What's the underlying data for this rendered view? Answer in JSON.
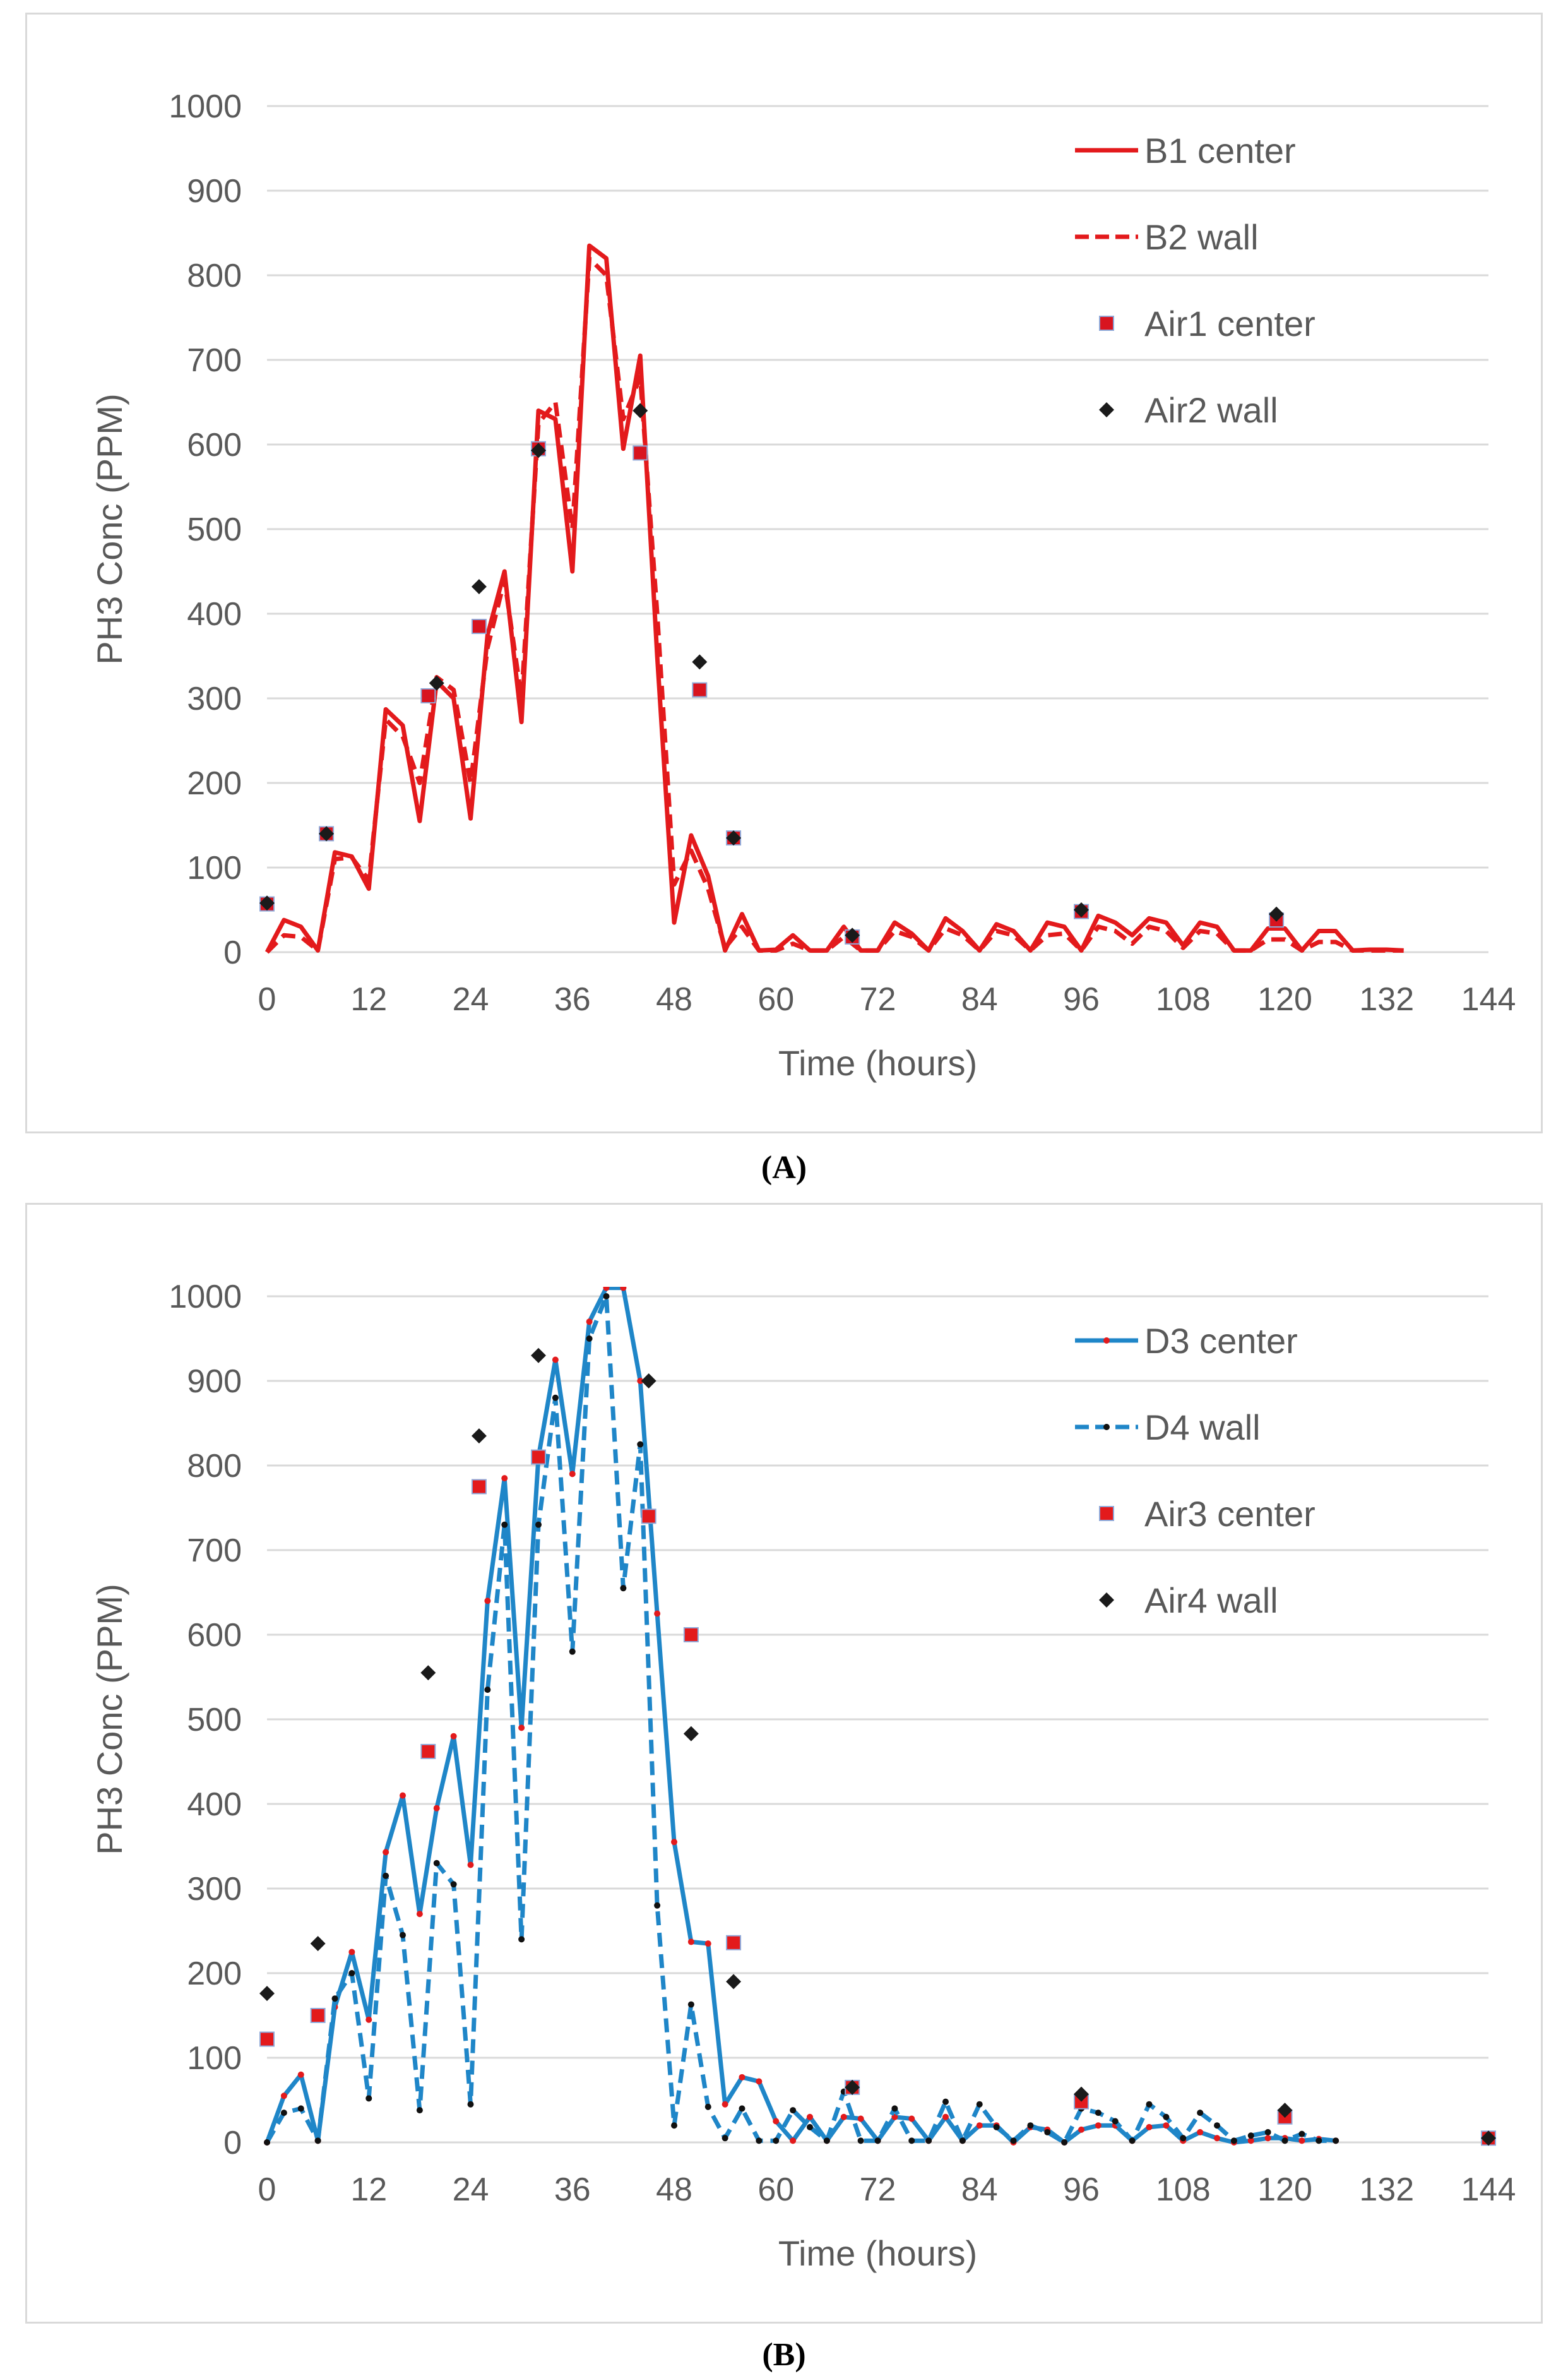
{
  "charts": [
    {
      "caption": "(A)",
      "chart_data": {
        "type": "line",
        "title": "",
        "xlabel": "Time (hours)",
        "ylabel": "PH3 Conc  (PPM)",
        "xlim": [
          0,
          144
        ],
        "ylim": [
          0,
          1000
        ],
        "xticks": [
          "0",
          "12",
          "24",
          "36",
          "48",
          "60",
          "72",
          "84",
          "96",
          "108",
          "120",
          "132",
          "144"
        ],
        "yticks": [
          "0",
          "100",
          "200",
          "300",
          "400",
          "500",
          "600",
          "700",
          "800",
          "900",
          "1000"
        ],
        "grid": "horizontal",
        "legend_position": "top-right",
        "series": [
          {
            "name": "B1 center",
            "kind": "line",
            "style": "solid",
            "color": "#e31a1c",
            "x": [
              0,
              2,
              4,
              6,
              8,
              10,
              12,
              14,
              16,
              18,
              20,
              22,
              24,
              26,
              28,
              30,
              32,
              34,
              36,
              38,
              40,
              42,
              44,
              46,
              48,
              50,
              52,
              54,
              56,
              58,
              60,
              62,
              64,
              66,
              68,
              70,
              72,
              74,
              76,
              78,
              80,
              82,
              84,
              86,
              88,
              90,
              92,
              94,
              96,
              98,
              100,
              102,
              104,
              106,
              108,
              110,
              112,
              114,
              116,
              118,
              120,
              122,
              124,
              126,
              128,
              130,
              132,
              134
            ],
            "y": [
              0,
              38,
              30,
              2,
              118,
              113,
              75,
              287,
              268,
              155,
              320,
              300,
              158,
              375,
              450,
              272,
              640,
              630,
              450,
              835,
              820,
              595,
              705,
              350,
              35,
              138,
              90,
              2,
              45,
              2,
              3,
              20,
              2,
              2,
              30,
              2,
              2,
              35,
              22,
              2,
              40,
              25,
              2,
              33,
              25,
              2,
              35,
              30,
              2,
              43,
              35,
              20,
              40,
              35,
              8,
              35,
              30,
              2,
              2,
              28,
              28,
              2,
              25,
              25,
              2,
              3,
              3,
              2
            ]
          },
          {
            "name": "B2 wall",
            "kind": "line",
            "style": "dashed",
            "color": "#e31a1c",
            "x": [
              0,
              2,
              4,
              6,
              8,
              10,
              12,
              14,
              16,
              18,
              20,
              22,
              24,
              26,
              28,
              30,
              32,
              34,
              36,
              38,
              40,
              42,
              44,
              46,
              48,
              50,
              52,
              54,
              56,
              58,
              60,
              62,
              64,
              66,
              68,
              70,
              72,
              74,
              76,
              78,
              80,
              82,
              84,
              86,
              88,
              90,
              92,
              94,
              96,
              98,
              100,
              102,
              104,
              106,
              108,
              110,
              112,
              114,
              116,
              118,
              120,
              122,
              124,
              126,
              128,
              130,
              132,
              134
            ],
            "y": [
              0,
              20,
              18,
              2,
              110,
              112,
              85,
              275,
              255,
              200,
              325,
              310,
              200,
              360,
              440,
              300,
              625,
              650,
              500,
              820,
              800,
              630,
              680,
              400,
              80,
              120,
              75,
              5,
              30,
              2,
              2,
              10,
              2,
              2,
              18,
              2,
              2,
              25,
              18,
              2,
              28,
              20,
              2,
              25,
              20,
              2,
              20,
              22,
              2,
              30,
              25,
              10,
              30,
              25,
              5,
              25,
              22,
              2,
              2,
              15,
              15,
              2,
              12,
              12,
              2,
              2,
              2,
              2
            ]
          },
          {
            "name": "Air1 center",
            "kind": "scatter",
            "marker": "square",
            "color": "#d8141f",
            "x": [
              0,
              7,
              19,
              25,
              32,
              44,
              51,
              55,
              69,
              96,
              119
            ],
            "y": [
              57,
              140,
              303,
              385,
              595,
              590,
              310,
              135,
              18,
              48,
              38
            ]
          },
          {
            "name": "Air2 wall",
            "kind": "scatter",
            "marker": "diamond",
            "color": "#1a1a1a",
            "x": [
              0,
              7,
              20,
              25,
              32,
              44,
              51,
              55,
              69,
              96,
              119
            ],
            "y": [
              58,
              140,
              318,
              432,
              593,
              640,
              343,
              135,
              20,
              50,
              45
            ]
          }
        ]
      }
    },
    {
      "caption": "(B)",
      "chart_data": {
        "type": "line",
        "title": "",
        "xlabel": "Time (hours)",
        "ylabel": "PH3 Conc  (PPM)",
        "xlim": [
          0,
          144
        ],
        "ylim": [
          0,
          1000
        ],
        "xticks": [
          "0",
          "12",
          "24",
          "36",
          "48",
          "60",
          "72",
          "84",
          "96",
          "108",
          "120",
          "132",
          "144"
        ],
        "yticks": [
          "0",
          "100",
          "200",
          "300",
          "400",
          "500",
          "600",
          "700",
          "800",
          "900",
          "1000"
        ],
        "grid": "horizontal",
        "legend_position": "top-right",
        "series": [
          {
            "name": "D3 center",
            "kind": "line",
            "style": "solid",
            "color": "#1f86c8",
            "marker_color": "#e31a1c",
            "x": [
              0,
              2,
              4,
              6,
              8,
              10,
              12,
              14,
              16,
              18,
              20,
              22,
              24,
              26,
              28,
              30,
              32,
              34,
              36,
              38,
              40,
              42,
              44,
              46,
              48,
              50,
              52,
              54,
              56,
              58,
              60,
              62,
              64,
              66,
              68,
              70,
              72,
              74,
              76,
              78,
              80,
              82,
              84,
              86,
              88,
              90,
              92,
              94,
              96,
              98,
              100,
              102,
              104,
              106,
              108,
              110,
              112,
              114,
              116,
              118,
              120,
              122,
              124,
              126
            ],
            "y": [
              0,
              55,
              80,
              2,
              160,
              225,
              145,
              343,
              410,
              270,
              395,
              480,
              328,
              640,
              785,
              490,
              810,
              925,
              790,
              970,
              1010,
              1010,
              900,
              625,
              355,
              237,
              235,
              45,
              77,
              72,
              25,
              2,
              30,
              2,
              30,
              28,
              2,
              30,
              28,
              2,
              30,
              2,
              20,
              20,
              0,
              18,
              15,
              0,
              15,
              20,
              20,
              2,
              18,
              20,
              2,
              12,
              5,
              0,
              2,
              5,
              5,
              2,
              4,
              2
            ]
          },
          {
            "name": "D4 wall",
            "kind": "line",
            "style": "dashed",
            "color": "#1f86c8",
            "marker_color": "#111111",
            "x": [
              0,
              2,
              4,
              6,
              8,
              10,
              12,
              14,
              16,
              18,
              20,
              22,
              24,
              26,
              28,
              30,
              32,
              34,
              36,
              38,
              40,
              42,
              44,
              46,
              48,
              50,
              52,
              54,
              56,
              58,
              60,
              62,
              64,
              66,
              68,
              70,
              72,
              74,
              76,
              78,
              80,
              82,
              84,
              86,
              88,
              90,
              92,
              94,
              96,
              98,
              100,
              102,
              104,
              106,
              108,
              110,
              112,
              114,
              116,
              118,
              120,
              122,
              124,
              126
            ],
            "y": [
              0,
              35,
              40,
              2,
              170,
              200,
              52,
              315,
              245,
              38,
              330,
              305,
              45,
              535,
              730,
              240,
              730,
              880,
              580,
              950,
              1000,
              655,
              825,
              280,
              20,
              163,
              42,
              5,
              40,
              2,
              2,
              38,
              18,
              2,
              60,
              2,
              2,
              40,
              2,
              2,
              48,
              2,
              45,
              18,
              2,
              20,
              12,
              0,
              40,
              35,
              25,
              2,
              45,
              30,
              5,
              35,
              20,
              2,
              8,
              12,
              2,
              10,
              2,
              2
            ]
          },
          {
            "name": "Air3 center",
            "kind": "scatter",
            "marker": "square",
            "color": "#e31a1c",
            "x": [
              0,
              6,
              19,
              25,
              32,
              45,
              50,
              55,
              69,
              96,
              120,
              144
            ],
            "y": [
              122,
              150,
              462,
              775,
              810,
              740,
              600,
              236,
              65,
              48,
              30,
              5
            ]
          },
          {
            "name": "Air4 wall",
            "kind": "scatter",
            "marker": "diamond",
            "color": "#1a1a1a",
            "x": [
              0,
              6,
              19,
              25,
              32,
              45,
              50,
              55,
              69,
              96,
              120,
              144
            ],
            "y": [
              176,
              235,
              555,
              835,
              930,
              900,
              483,
              190,
              65,
              57,
              38,
              5
            ]
          }
        ]
      }
    }
  ]
}
